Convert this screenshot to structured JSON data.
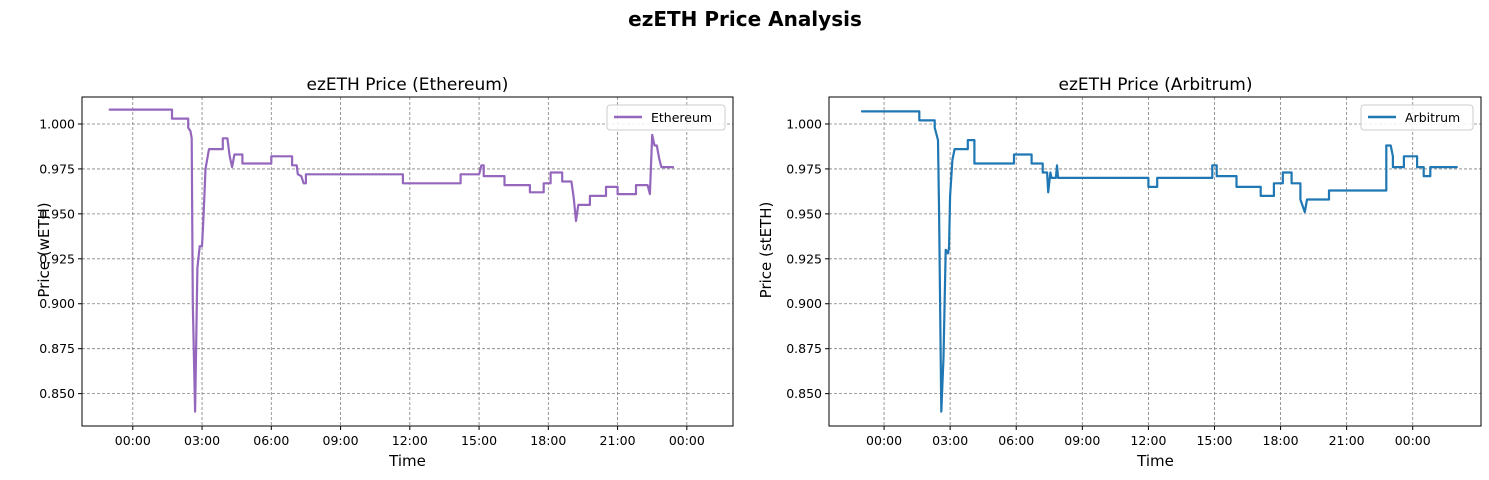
{
  "figure": {
    "title": "ezETH Price Analysis"
  },
  "chart_data": [
    {
      "type": "line",
      "title": "ezETH Price (Ethereum)",
      "xlabel": "Time",
      "ylabel": "Price (wETH)",
      "x_ticks": [
        "00:00",
        "03:00",
        "06:00",
        "09:00",
        "12:00",
        "15:00",
        "18:00",
        "21:00",
        "00:00"
      ],
      "x_tick_hours": [
        0,
        3,
        6,
        9,
        12,
        15,
        18,
        21,
        24
      ],
      "xlim_hours": [
        -2.2,
        26.0
      ],
      "y_ticks": [
        0.85,
        0.875,
        0.9,
        0.925,
        0.95,
        0.975,
        1.0
      ],
      "ylim": [
        0.832,
        1.015
      ],
      "grid": true,
      "legend": "top-right",
      "series": [
        {
          "name": "Ethereum",
          "color": "#9467bd",
          "x_hours": [
            -1.0,
            1.7,
            1.7,
            2.4,
            2.4,
            2.5,
            2.55,
            2.6,
            2.7,
            2.8,
            2.9,
            3.0,
            3.05,
            3.1,
            3.15,
            3.3,
            3.4,
            3.4,
            3.9,
            3.9,
            4.1,
            4.2,
            4.3,
            4.4,
            4.75,
            4.75,
            6.0,
            6.0,
            6.9,
            6.9,
            7.1,
            7.15,
            7.3,
            7.4,
            7.5,
            7.5,
            11.7,
            11.7,
            14.2,
            14.2,
            15.0,
            15.1,
            15.2,
            15.2,
            16.1,
            16.1,
            17.2,
            17.2,
            17.8,
            17.8,
            18.1,
            18.1,
            18.6,
            18.6,
            19.0,
            19.1,
            19.2,
            19.3,
            19.3,
            19.8,
            19.8,
            20.5,
            20.5,
            21.0,
            21.0,
            21.8,
            21.8,
            22.3,
            22.4,
            22.5,
            22.6,
            22.7,
            22.8,
            22.9,
            23.0,
            23.0,
            23.4
          ],
          "values": [
            1.008,
            1.008,
            1.003,
            1.003,
            0.998,
            0.996,
            0.992,
            0.9,
            0.84,
            0.92,
            0.932,
            0.932,
            0.945,
            0.96,
            0.975,
            0.986,
            0.986,
            0.986,
            0.986,
            0.992,
            0.992,
            0.982,
            0.976,
            0.983,
            0.983,
            0.978,
            0.978,
            0.982,
            0.982,
            0.977,
            0.977,
            0.972,
            0.971,
            0.967,
            0.967,
            0.972,
            0.972,
            0.967,
            0.967,
            0.972,
            0.972,
            0.977,
            0.977,
            0.971,
            0.971,
            0.966,
            0.966,
            0.962,
            0.962,
            0.967,
            0.967,
            0.973,
            0.973,
            0.968,
            0.968,
            0.959,
            0.946,
            0.955,
            0.955,
            0.955,
            0.96,
            0.96,
            0.965,
            0.965,
            0.961,
            0.961,
            0.966,
            0.966,
            0.961,
            0.994,
            0.988,
            0.988,
            0.981,
            0.976,
            0.976,
            0.976,
            0.976
          ]
        }
      ]
    },
    {
      "type": "line",
      "title": "ezETH Price (Arbitrum)",
      "xlabel": "Time",
      "ylabel": "Price (stETH)",
      "x_ticks": [
        "00:00",
        "03:00",
        "06:00",
        "09:00",
        "12:00",
        "15:00",
        "18:00",
        "21:00",
        "00:00"
      ],
      "x_tick_hours": [
        0,
        3,
        6,
        9,
        12,
        15,
        18,
        21,
        24
      ],
      "xlim_hours": [
        -2.5,
        27.1
      ],
      "y_ticks": [
        0.85,
        0.875,
        0.9,
        0.925,
        0.95,
        0.975,
        1.0
      ],
      "ylim": [
        0.832,
        1.015
      ],
      "grid": true,
      "legend": "top-right",
      "series": [
        {
          "name": "Arbitrum",
          "color": "#1f77b4",
          "x_hours": [
            -1.0,
            1.6,
            1.6,
            2.3,
            2.3,
            2.45,
            2.5,
            2.6,
            2.7,
            2.8,
            2.9,
            2.95,
            3.0,
            3.1,
            3.2,
            3.3,
            3.3,
            3.8,
            3.8,
            4.1,
            4.1,
            5.9,
            5.9,
            6.7,
            6.7,
            7.2,
            7.2,
            7.4,
            7.45,
            7.55,
            7.6,
            7.8,
            7.85,
            7.9,
            7.9,
            12.0,
            12.0,
            12.4,
            12.4,
            14.9,
            14.9,
            15.1,
            15.1,
            16.0,
            16.0,
            17.1,
            17.1,
            17.7,
            17.7,
            18.1,
            18.1,
            18.5,
            18.5,
            18.9,
            18.9,
            19.1,
            19.2,
            19.25,
            19.25,
            20.2,
            20.2,
            22.8,
            22.8,
            23.0,
            23.1,
            23.1,
            23.6,
            23.6,
            24.2,
            24.2,
            24.5,
            24.5,
            24.8,
            24.8,
            25.1,
            25.1,
            26.0
          ],
          "values": [
            1.007,
            1.007,
            1.002,
            1.002,
            0.998,
            0.991,
            0.95,
            0.84,
            0.87,
            0.93,
            0.928,
            0.931,
            0.96,
            0.98,
            0.986,
            0.986,
            0.986,
            0.986,
            0.991,
            0.991,
            0.978,
            0.978,
            0.983,
            0.983,
            0.978,
            0.978,
            0.973,
            0.973,
            0.962,
            0.973,
            0.97,
            0.97,
            0.977,
            0.97,
            0.97,
            0.97,
            0.965,
            0.965,
            0.97,
            0.97,
            0.977,
            0.977,
            0.971,
            0.971,
            0.965,
            0.965,
            0.96,
            0.96,
            0.967,
            0.967,
            0.973,
            0.973,
            0.967,
            0.967,
            0.958,
            0.951,
            0.958,
            0.958,
            0.958,
            0.958,
            0.963,
            0.963,
            0.988,
            0.988,
            0.982,
            0.976,
            0.976,
            0.982,
            0.982,
            0.976,
            0.976,
            0.971,
            0.971,
            0.976,
            0.976,
            0.976,
            0.976
          ]
        }
      ]
    }
  ]
}
